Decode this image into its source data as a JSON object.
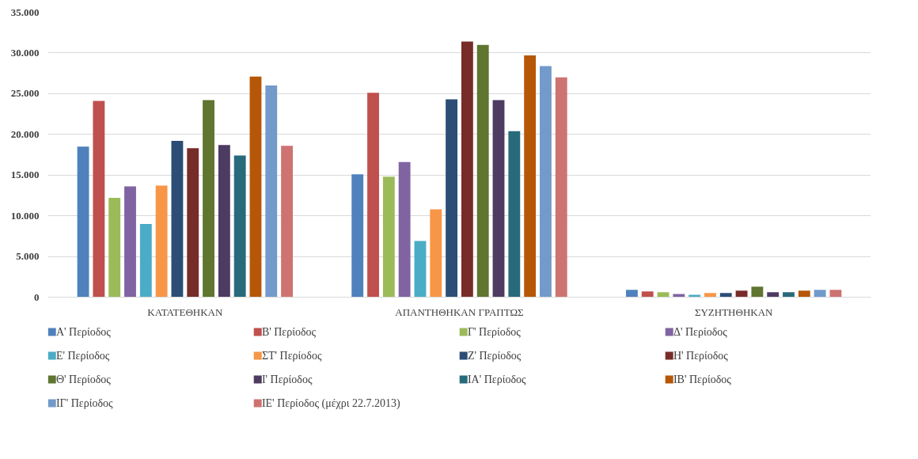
{
  "chart_data": {
    "type": "bar",
    "categories": [
      "ΚΑΤΑΤΕΘΗΚΑΝ",
      "ΑΠΑΝΤΗΘΗΚΑΝ ΓΡΑΠΤΩΣ",
      "ΣΥΖΗΤΗΘΗΚΑΝ"
    ],
    "ylim": [
      0,
      35000
    ],
    "yticks": [
      {
        "value": 0,
        "label": "0"
      },
      {
        "value": 5000,
        "label": "5.000"
      },
      {
        "value": 10000,
        "label": "10.000"
      },
      {
        "value": 15000,
        "label": "15.000"
      },
      {
        "value": 20000,
        "label": "20.000"
      },
      {
        "value": 25000,
        "label": "25.000"
      },
      {
        "value": 30000,
        "label": "30.000"
      },
      {
        "value": 35000,
        "label": "35.000"
      }
    ],
    "grid": "y",
    "legend": "bottom",
    "series": [
      {
        "name": "Α' Περίοδος",
        "color": "#4f81bd",
        "values": [
          18500,
          15100,
          900
        ]
      },
      {
        "name": "Β' Περίοδος",
        "color": "#c0504d",
        "values": [
          24100,
          25100,
          700
        ]
      },
      {
        "name": "Γ' Περίοδος",
        "color": "#9bbb59",
        "values": [
          12200,
          14800,
          600
        ]
      },
      {
        "name": "Δ' Περίοδος",
        "color": "#8064a2",
        "values": [
          13600,
          16600,
          400
        ]
      },
      {
        "name": "Ε' Περίοδος",
        "color": "#4bacc6",
        "values": [
          9000,
          6900,
          300
        ]
      },
      {
        "name": "ΣΤ' Περίοδος",
        "color": "#f79646",
        "values": [
          13700,
          10800,
          500
        ]
      },
      {
        "name": "Ζ' Περίοδος",
        "color": "#2c4d75",
        "values": [
          19200,
          24300,
          500
        ]
      },
      {
        "name": "Η' Περίοδος",
        "color": "#772c2a",
        "values": [
          18300,
          31400,
          800
        ]
      },
      {
        "name": "Θ' Περίοδος",
        "color": "#5f7530",
        "values": [
          24200,
          31000,
          1300
        ]
      },
      {
        "name": "Ι' Περίοδος",
        "color": "#4d3b62",
        "values": [
          18700,
          24200,
          600
        ]
      },
      {
        "name": "ΙΑ' Περίοδος",
        "color": "#276a7c",
        "values": [
          17400,
          20400,
          600
        ]
      },
      {
        "name": "ΙΒ' Περίοδος",
        "color": "#b65708",
        "values": [
          27100,
          29700,
          800
        ]
      },
      {
        "name": "ΙΓ' Περίοδος",
        "color": "#729aca",
        "values": [
          26000,
          28400,
          900
        ]
      },
      {
        "name": "ΙΕ' Περίοδος (μέχρι 22.7.2013)",
        "color": "#cd7371",
        "values": [
          18600,
          27000,
          900
        ]
      }
    ]
  }
}
